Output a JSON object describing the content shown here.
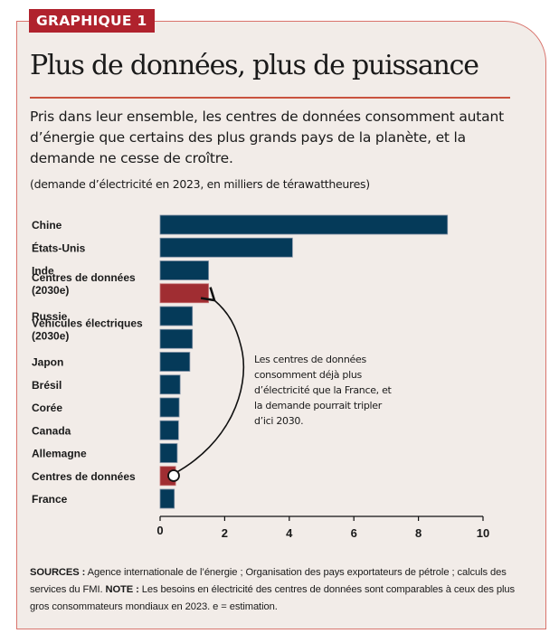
{
  "badge": "GRAPHIQUE 1",
  "title": "Plus de données, plus de puissance",
  "subtitle": "Pris dans leur ensemble, les centres de données consomment autant d’énergie que certains des plus grands pays de la planète, et la demande ne cesse de croître.",
  "units": "(demande d’électricité en 2023, en milliers de térawattheures)",
  "annotation": "Les centres de données consomment déjà plus d’électricité que la France, et la demande pourrait tripler d’ici 2030.",
  "footer": {
    "sources_label": "SOURCES :",
    "sources_text": " Agence internationale de l’énergie ; Organisation des pays exportateurs de pétrole ; calculs des services du FMI. ",
    "note_label": "NOTE :",
    "note_text": " Les besoins en électricité des centres de données sont comparables à ceux des plus gros consommateurs mondiaux en 2023. e = estimation."
  },
  "colors": {
    "primary_bar": "#053a59",
    "highlight_bar": "#a02d32",
    "frame": "#d9736c",
    "badge": "#b0222d",
    "background": "#f2ece8"
  },
  "chart_data": {
    "type": "bar",
    "orientation": "horizontal",
    "title": "Plus de données, plus de puissance",
    "xlabel": "",
    "ylabel": "",
    "xlim": [
      0,
      10
    ],
    "xticks": [
      0,
      2,
      4,
      6,
      8,
      10
    ],
    "grid": false,
    "categories": [
      {
        "label": [
          "Chine"
        ],
        "value": 8.9,
        "highlight": false
      },
      {
        "label": [
          "États-Unis"
        ],
        "value": 4.1,
        "highlight": false
      },
      {
        "label": [
          "Inde"
        ],
        "value": 1.5,
        "highlight": false
      },
      {
        "label": [
          "Centres de données",
          "(2030e)"
        ],
        "value": 1.5,
        "highlight": true
      },
      {
        "label": [
          "Russie"
        ],
        "value": 1.0,
        "highlight": false
      },
      {
        "label": [
          "Véhicules électriques",
          "(2030e)"
        ],
        "value": 1.0,
        "highlight": false
      },
      {
        "label": [
          "Japon"
        ],
        "value": 0.92,
        "highlight": false
      },
      {
        "label": [
          "Brésil"
        ],
        "value": 0.62,
        "highlight": false
      },
      {
        "label": [
          "Corée"
        ],
        "value": 0.59,
        "highlight": false
      },
      {
        "label": [
          "Canada"
        ],
        "value": 0.57,
        "highlight": false
      },
      {
        "label": [
          "Allemagne"
        ],
        "value": 0.53,
        "highlight": false
      },
      {
        "label": [
          "Centres de données"
        ],
        "value": 0.48,
        "highlight": true
      },
      {
        "label": [
          "France"
        ],
        "value": 0.44,
        "highlight": false
      }
    ]
  }
}
